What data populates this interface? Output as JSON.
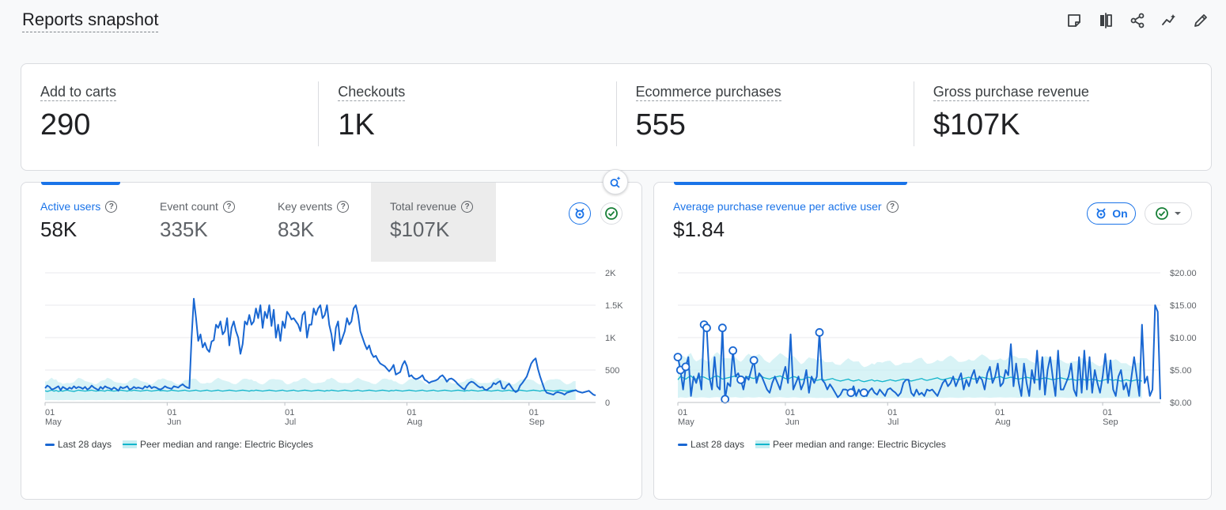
{
  "page": {
    "title": "Reports snapshot"
  },
  "toolbar": {
    "icons": [
      "notes-icon",
      "compare-icon",
      "share-icon",
      "insights-icon",
      "edit-icon"
    ]
  },
  "kpis": [
    {
      "label": "Add to carts",
      "value": "290"
    },
    {
      "label": "Checkouts",
      "value": "1K"
    },
    {
      "label": "Ecommerce purchases",
      "value": "555"
    },
    {
      "label": "Gross purchase revenue",
      "value": "$107K"
    }
  ],
  "left_card": {
    "tabs": [
      {
        "label": "Active users",
        "value": "58K"
      },
      {
        "label": "Event count",
        "value": "335K"
      },
      {
        "label": "Key events",
        "value": "83K"
      },
      {
        "label": "Total revenue",
        "value": "$107K"
      }
    ],
    "legend": {
      "series": "Last 28 days",
      "peer": "Peer median and range: Electric Bicycles"
    }
  },
  "right_card": {
    "metric_label": "Average purchase revenue per active user",
    "metric_value": "$1.84",
    "benchmark_toggle": "On",
    "legend": {
      "series": "Last 28 days",
      "peer": "Peer median and range: Electric Bicycles"
    }
  },
  "colors": {
    "accent": "#1a73e8",
    "series": "#1967d2",
    "peer_band": "#c7eef2",
    "peer_line": "#12b5cb",
    "check": "#188038"
  },
  "chart_data": [
    {
      "type": "line",
      "ylim": [
        0,
        2000
      ],
      "yticks": [
        "2K",
        "1.5K",
        "1K",
        "500",
        "0"
      ],
      "yticks_values": [
        2000,
        1500,
        1000,
        500,
        0
      ],
      "xticks": [
        {
          "i": 0,
          "day": "01",
          "month": "May"
        },
        {
          "i": 31,
          "day": "01",
          "month": "Jun"
        },
        {
          "i": 61,
          "day": "01",
          "month": "Jul"
        },
        {
          "i": 92,
          "day": "01",
          "month": "Aug"
        },
        {
          "i": 123,
          "day": "01",
          "month": "Sep"
        }
      ],
      "series": [
        {
          "name": "Last 28 days",
          "values": [
            220,
            260,
            240,
            200,
            210,
            230,
            250,
            190,
            240,
            220,
            200,
            230,
            210,
            250,
            220,
            240,
            230,
            210,
            240,
            200,
            220,
            260,
            230,
            210,
            190,
            240,
            210,
            250,
            230,
            220,
            200,
            230,
            210,
            180,
            240,
            220,
            230,
            250,
            200,
            210,
            240,
            220,
            230,
            220,
            210,
            250,
            230,
            260,
            220,
            240,
            230,
            210,
            200,
            220,
            250,
            230,
            220,
            210,
            250,
            240,
            230,
            260,
            280,
            250,
            230,
            220,
            1000,
            1600,
            1300,
            950,
            1050,
            850,
            920,
            820,
            780,
            940,
            960,
            1200,
            1150,
            1250,
            1050,
            1100,
            1300,
            880,
            1150,
            1250,
            1100,
            1000,
            750,
            900,
            1250,
            1200,
            1350,
            1200,
            1250,
            1450,
            1300,
            1500,
            1150,
            1400,
            1300,
            1500,
            1180,
            1430,
            1000,
            1200,
            950,
            1250,
            1150,
            1400,
            1350,
            1280,
            1300,
            1250,
            1200,
            1100,
            1350,
            1400,
            1000,
            1200,
            1200,
            1450,
            1350,
            1450,
            1500,
            1300,
            1350,
            1500,
            1200,
            1050,
            800,
            1150,
            1250,
            900,
            1000,
            1100,
            1300,
            1200,
            1250,
            1450,
            1500,
            1350,
            1100,
            1000,
            900,
            820,
            880,
            760,
            700,
            720,
            650,
            600,
            580,
            560,
            520,
            480,
            520,
            580,
            430,
            450,
            470,
            580,
            640,
            560,
            400,
            420,
            380,
            360,
            370,
            390,
            420,
            350,
            330,
            300,
            320,
            330,
            340,
            360,
            400,
            420,
            380,
            320,
            360,
            370,
            350,
            320,
            280,
            250,
            220,
            200,
            260,
            300,
            320,
            310,
            280,
            250,
            230,
            240,
            200,
            190,
            220,
            240,
            300,
            280,
            310,
            330,
            220,
            210,
            260,
            290,
            240,
            190,
            160,
            180,
            260,
            300,
            350,
            400,
            500,
            600,
            650,
            680,
            520,
            400,
            300,
            200,
            150,
            140,
            130,
            120,
            150,
            160,
            150,
            140,
            120,
            150,
            160,
            170,
            180,
            190,
            170,
            160,
            150,
            160,
            170,
            180,
            150,
            120,
            110
          ]
        },
        {
          "name": "Peer median",
          "values": [
            180,
            170,
            180,
            190,
            175,
            185,
            170,
            180,
            175,
            185,
            190,
            180,
            175,
            170,
            180,
            190,
            185,
            180,
            175,
            180,
            185,
            190,
            180,
            175,
            180,
            185,
            180,
            175,
            190,
            185,
            180,
            175,
            180,
            185,
            190,
            185,
            180,
            175,
            185,
            180,
            190,
            185,
            180,
            175,
            180,
            185,
            190,
            180,
            175,
            180,
            185,
            190,
            180,
            185,
            180,
            175,
            180,
            190,
            185,
            180,
            175,
            180,
            185,
            190,
            180,
            175,
            180,
            185,
            190,
            180,
            175,
            180,
            185,
            190,
            180,
            175,
            180,
            185,
            190,
            180,
            175,
            180,
            185,
            190,
            185,
            180,
            175,
            180,
            185,
            190,
            185,
            180,
            175,
            185,
            180,
            190,
            185,
            180,
            175,
            180,
            185,
            190,
            185,
            180,
            175,
            180,
            185,
            190,
            180,
            175,
            180,
            185,
            190,
            180,
            175,
            180,
            185,
            190,
            185,
            180,
            175,
            180,
            185,
            190,
            185,
            180,
            175,
            185,
            180,
            190,
            185,
            180,
            175,
            180,
            185,
            190,
            185,
            180,
            175,
            180,
            185,
            190,
            180,
            175,
            180,
            185,
            190,
            185,
            180,
            175,
            180,
            185,
            190,
            185,
            180,
            175,
            185,
            180,
            190,
            185,
            180,
            175,
            180,
            185,
            190,
            185,
            180,
            175,
            180,
            185,
            190,
            180,
            175,
            180,
            185,
            190,
            180,
            175,
            180,
            185,
            190,
            185,
            180,
            175,
            180,
            185,
            190,
            185,
            180,
            175,
            185,
            180,
            190,
            185,
            180,
            175,
            180,
            185,
            190,
            185,
            180,
            175,
            180,
            185,
            190,
            180,
            175,
            180,
            185,
            190,
            180,
            175,
            180,
            185,
            190,
            185,
            180,
            175,
            180,
            185,
            190,
            185,
            180,
            175,
            185,
            180,
            190,
            185,
            180,
            175,
            180,
            185,
            190,
            185,
            180,
            175,
            180,
            185,
            190,
            180
          ]
        }
      ]
    },
    {
      "type": "line",
      "ylim": [
        0,
        20
      ],
      "yticks": [
        "$20.00",
        "$15.00",
        "$10.00",
        "$5.00",
        "$0.00"
      ],
      "yticks_values": [
        20,
        15,
        10,
        5,
        0
      ],
      "xticks": [
        {
          "i": 0,
          "day": "01",
          "month": "May"
        },
        {
          "i": 31,
          "day": "01",
          "month": "Jun"
        },
        {
          "i": 61,
          "day": "01",
          "month": "Jul"
        },
        {
          "i": 92,
          "day": "01",
          "month": "Aug"
        },
        {
          "i": 123,
          "day": "01",
          "month": "Sep"
        }
      ],
      "series": [
        {
          "name": "Last 28 days",
          "values": [
            7,
            5,
            2,
            5.5,
            7,
            1,
            4,
            3,
            4.5,
            2,
            12,
            11.5,
            4,
            2,
            7,
            2.5,
            2,
            11.5,
            0.5,
            3,
            2.5,
            8,
            4,
            4.5,
            3.5,
            2,
            4,
            3.5,
            5,
            6.5,
            3,
            4.5,
            4,
            3,
            2,
            1.5,
            3,
            4,
            3,
            2,
            4,
            5.5,
            3,
            10.5,
            2,
            3,
            4,
            2,
            3,
            5,
            1.5,
            4,
            3,
            4,
            10.8,
            3.5,
            3,
            2,
            2.8,
            2.2,
            1.5,
            0.8,
            1.2,
            2,
            2,
            1.8,
            1.5,
            2.5,
            1,
            2,
            1.2,
            1.5,
            1,
            1.8,
            2.2,
            1.5,
            1.2,
            2,
            1.5,
            1,
            2,
            2.2,
            1.8,
            1.5,
            1,
            1.5,
            3,
            3.5,
            3.5,
            1.5,
            1,
            2,
            1.2,
            1.5,
            1,
            2,
            1.8,
            2,
            1.5,
            1,
            2,
            3,
            3.5,
            2.5,
            3,
            4,
            2.5,
            3.5,
            4.5,
            2,
            3.5,
            2.5,
            4,
            5,
            3,
            4,
            3.5,
            2,
            4.5,
            5.5,
            3,
            4,
            6,
            2.5,
            3,
            5,
            4.2,
            9,
            2.5,
            6,
            3,
            1,
            6,
            3,
            1,
            5,
            3,
            8,
            2,
            7,
            1.2,
            5,
            7,
            3.8,
            1,
            8,
            2,
            2,
            3,
            4,
            6,
            2,
            1,
            7,
            1.5,
            8,
            2,
            7,
            1.5,
            5,
            3,
            1.5,
            4,
            7.5,
            3,
            6.5,
            2,
            1,
            4,
            5,
            2,
            3,
            1,
            4,
            7,
            4,
            1,
            12,
            3,
            4,
            1,
            2,
            15,
            14,
            0.5
          ]
        },
        {
          "name": "Peer median",
          "values": [
            3.5,
            4,
            3.8,
            3.6,
            3.9,
            4.1,
            3.7,
            3.6,
            3.8,
            4,
            3.9,
            3.7,
            3.5,
            3.8,
            4,
            4.1,
            3.9,
            3.6,
            3.7,
            3.8,
            3.9,
            4,
            4.1,
            3.8,
            3.6,
            3.7,
            3.9,
            4,
            3.8,
            3.7,
            3.9,
            4.1,
            4,
            3.8,
            3.7,
            3.6,
            3.8,
            3.9,
            4,
            4.1,
            3.9,
            3.7,
            3.6,
            3.8,
            4,
            3.9,
            3.7,
            3.5,
            3.6,
            3.8,
            3.9,
            3.7,
            3.6,
            3.4,
            3.5,
            3.6,
            3.4,
            3.5,
            3.6,
            3.7,
            3.5,
            3.4,
            3.3,
            3.4,
            3.5,
            3.6,
            3.4,
            3.3,
            3.4,
            3.5,
            3.3,
            3.2,
            3.3,
            3.4,
            3.5,
            3.3,
            3.4,
            3.3,
            3.2,
            3.3,
            3.4,
            3.5,
            3.4,
            3.3,
            3.4,
            3.5,
            3.6,
            3.5,
            3.4,
            3.3,
            3.4,
            3.5,
            3.6,
            3.7,
            3.5,
            3.4,
            3.5,
            3.6,
            3.7,
            3.8,
            3.6,
            3.5,
            3.6,
            3.7,
            3.8,
            3.7,
            3.6,
            3.5,
            3.6,
            3.7,
            3.8,
            3.9,
            3.7,
            3.6,
            3.7,
            3.8,
            3.9,
            3.8,
            3.7,
            3.6,
            3.7,
            3.8,
            3.9,
            4,
            3.8,
            3.7,
            3.8,
            3.9,
            3.8,
            3.7,
            3.6,
            3.7,
            3.8,
            3.9,
            3.8,
            3.7,
            3.6,
            3.5,
            3.6,
            3.7,
            3.8,
            3.7,
            3.6,
            3.5,
            3.6,
            3.7,
            3.8,
            3.7,
            3.6,
            3.5,
            3.6,
            3.5,
            3.4,
            3.5,
            3.6,
            3.5,
            3.4,
            3.5,
            3.6,
            3.5,
            3.4,
            3.3,
            3.4,
            3.5,
            3.6,
            3.5,
            3.4,
            3.5,
            3.4,
            3.3,
            3.4,
            3.5,
            3.4,
            3.3,
            3.4,
            3.5,
            3.4,
            3.3
          ]
        }
      ]
    }
  ]
}
